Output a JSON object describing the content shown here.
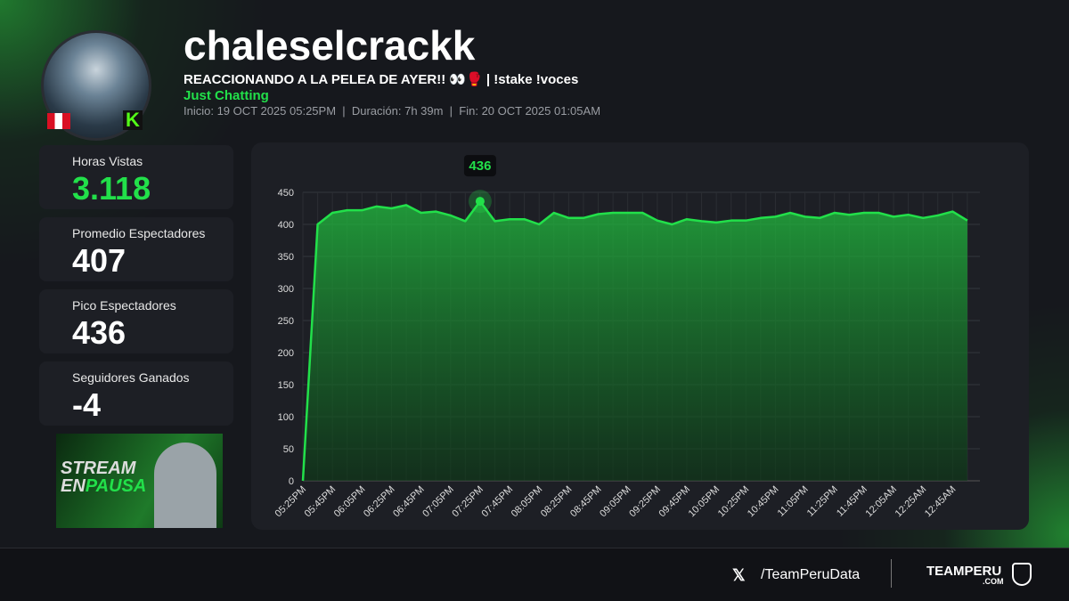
{
  "header": {
    "channel": "chaleselcrackk",
    "stream_title": "REACCIONANDO A LA PELEA DE AYER!! 👀🥊 | !stake !voces",
    "category": "Just Chatting",
    "info": "Inicio: 19 OCT 2025 05:25PM  |  Duración: 7h 39m  |  Fin: 20 OCT 2025 01:05AM",
    "platform_icon": "K"
  },
  "stats": [
    {
      "label": "Horas Vistas",
      "value": "3.118"
    },
    {
      "label": "Promedio Espectadores",
      "value": "407"
    },
    {
      "label": "Pico Espectadores",
      "value": "436"
    },
    {
      "label": "Seguidores Ganados",
      "value": "-4"
    }
  ],
  "thumbnail": {
    "line1": "STREAM",
    "line2a": "EN",
    "line2b": "PAUSA"
  },
  "footer": {
    "handle": "/TeamPeruData",
    "brand": "TEAMPERU",
    "brand_sub": ".COM"
  },
  "chart_data": {
    "type": "line",
    "color": "#22e04a",
    "grid": true,
    "categories": [
      "05:25PM",
      null,
      "05:45PM",
      null,
      "06:05PM",
      null,
      "06:25PM",
      null,
      "06:45PM",
      null,
      "07:05PM",
      null,
      "07:25PM",
      null,
      "07:45PM",
      null,
      "08:05PM",
      null,
      "08:25PM",
      null,
      "08:45PM",
      null,
      "09:05PM",
      null,
      "09:25PM",
      null,
      "09:45PM",
      null,
      "10:05PM",
      null,
      "10:25PM",
      null,
      "10:45PM",
      null,
      "11:05PM",
      null,
      "11:25PM",
      null,
      "11:45PM",
      null,
      "12:05AM",
      null,
      "12:25AM",
      null,
      "12:45AM",
      null
    ],
    "values": [
      0,
      400,
      418,
      422,
      422,
      428,
      425,
      430,
      418,
      420,
      414,
      405,
      436,
      405,
      408,
      408,
      400,
      418,
      410,
      410,
      416,
      418,
      418,
      418,
      406,
      400,
      408,
      405,
      403,
      406,
      406,
      410,
      412,
      418,
      412,
      410,
      418,
      415,
      418,
      418,
      412,
      415,
      410,
      414,
      420,
      406
    ],
    "ylim": [
      0,
      450
    ],
    "yticks": [
      0,
      50,
      100,
      150,
      200,
      250,
      300,
      350,
      400,
      450
    ]
  }
}
